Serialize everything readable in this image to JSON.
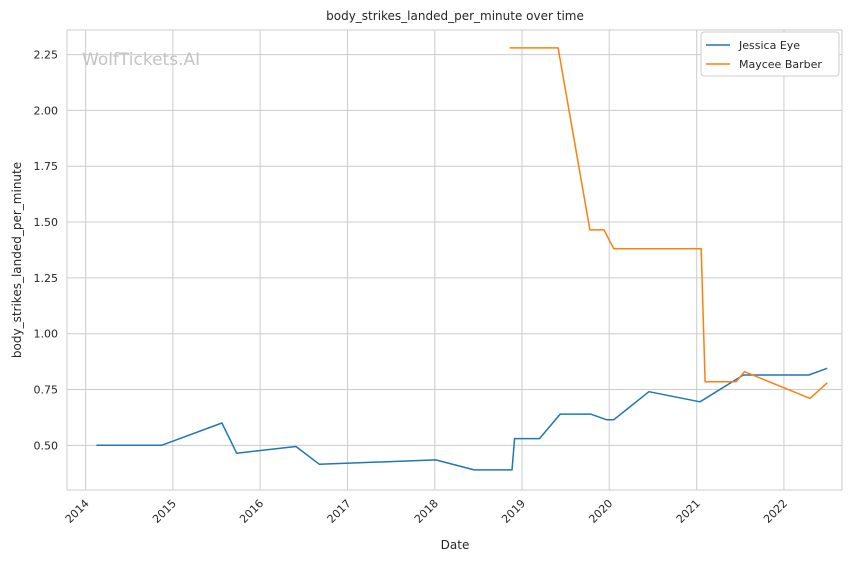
{
  "chart_data": {
    "type": "line",
    "title": "body_strikes_landed_per_minute over time",
    "xlabel": "Date",
    "ylabel": "body_strikes_landed_per_minute",
    "watermark": "WolfTickets.AI",
    "x_axis_type": "date",
    "xlim": [
      "2013-10-15",
      "2022-09-01"
    ],
    "ylim": [
      0.3,
      2.36
    ],
    "x_ticks": [
      {
        "date": "2014-01-01",
        "label": "2014"
      },
      {
        "date": "2015-01-01",
        "label": "2015"
      },
      {
        "date": "2016-01-01",
        "label": "2016"
      },
      {
        "date": "2017-01-01",
        "label": "2017"
      },
      {
        "date": "2018-01-01",
        "label": "2018"
      },
      {
        "date": "2019-01-01",
        "label": "2019"
      },
      {
        "date": "2020-01-01",
        "label": "2020"
      },
      {
        "date": "2021-01-01",
        "label": "2021"
      },
      {
        "date": "2022-01-01",
        "label": "2022"
      }
    ],
    "y_ticks": [
      {
        "value": 0.5,
        "label": "0.50"
      },
      {
        "value": 0.75,
        "label": "0.75"
      },
      {
        "value": 1.0,
        "label": "1.00"
      },
      {
        "value": 1.25,
        "label": "1.25"
      },
      {
        "value": 1.5,
        "label": "1.50"
      },
      {
        "value": 1.75,
        "label": "1.75"
      },
      {
        "value": 2.0,
        "label": "2.00"
      },
      {
        "value": 2.25,
        "label": "2.25"
      }
    ],
    "grid": true,
    "legend_position": "top-right",
    "series": [
      {
        "name": "Jessica Eye",
        "color": "#1f77b4",
        "points": [
          {
            "x": "2014-02-15",
            "y": 0.5
          },
          {
            "x": "2014-11-15",
            "y": 0.5
          },
          {
            "x": "2015-07-25",
            "y": 0.6
          },
          {
            "x": "2015-09-25",
            "y": 0.465
          },
          {
            "x": "2016-05-30",
            "y": 0.495
          },
          {
            "x": "2016-09-05",
            "y": 0.415
          },
          {
            "x": "2018-01-05",
            "y": 0.435
          },
          {
            "x": "2018-06-15",
            "y": 0.39
          },
          {
            "x": "2018-11-20",
            "y": 0.39
          },
          {
            "x": "2018-12-01",
            "y": 0.53
          },
          {
            "x": "2019-03-15",
            "y": 0.53
          },
          {
            "x": "2019-06-10",
            "y": 0.64
          },
          {
            "x": "2019-10-15",
            "y": 0.64
          },
          {
            "x": "2019-12-20",
            "y": 0.615
          },
          {
            "x": "2020-01-20",
            "y": 0.615
          },
          {
            "x": "2020-06-15",
            "y": 0.74
          },
          {
            "x": "2021-01-15",
            "y": 0.695
          },
          {
            "x": "2021-07-15",
            "y": 0.815
          },
          {
            "x": "2022-04-15",
            "y": 0.815
          },
          {
            "x": "2022-07-01",
            "y": 0.845
          }
        ]
      },
      {
        "name": "Maycee Barber",
        "color": "#ff7f0e",
        "points": [
          {
            "x": "2018-11-10",
            "y": 2.28
          },
          {
            "x": "2019-06-01",
            "y": 2.28
          },
          {
            "x": "2019-10-12",
            "y": 1.465
          },
          {
            "x": "2019-12-10",
            "y": 1.465
          },
          {
            "x": "2020-01-20",
            "y": 1.38
          },
          {
            "x": "2021-01-20",
            "y": 1.38
          },
          {
            "x": "2021-02-05",
            "y": 0.785
          },
          {
            "x": "2021-06-15",
            "y": 0.785
          },
          {
            "x": "2021-07-20",
            "y": 0.83
          },
          {
            "x": "2022-04-20",
            "y": 0.71
          },
          {
            "x": "2022-07-01",
            "y": 0.78
          }
        ]
      }
    ]
  }
}
